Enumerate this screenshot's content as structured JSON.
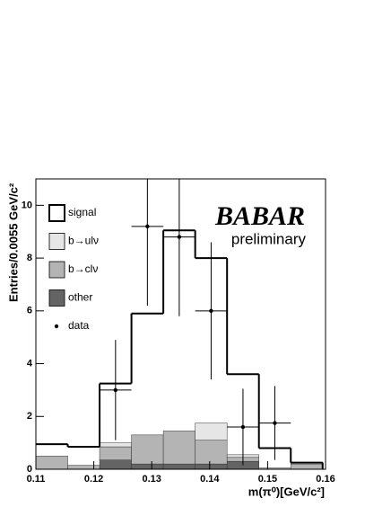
{
  "chart_data": {
    "type": "stacked-histogram",
    "logo": "BABAR",
    "annotation": "preliminary",
    "x_label": "m(π⁰)[GeV/c²]",
    "y_label": "Entries/0.0055 GeV/c²",
    "bins": [
      0.11,
      0.1155,
      0.121,
      0.1265,
      0.132,
      0.1375,
      0.143,
      0.1485,
      0.154,
      0.1595
    ],
    "series": [
      {
        "name": "signal",
        "color": "#000000",
        "fill": false,
        "values": [
          0.45,
          0.7,
          2.25,
          4.6,
          7.6,
          6.25,
          3.05,
          0.75,
          0
        ]
      },
      {
        "name": "b→ulν",
        "color": "#e6e6e6",
        "fill": true,
        "values": [
          0,
          0,
          0.15,
          0,
          0,
          0.65,
          0.1,
          0,
          0.05
        ]
      },
      {
        "name": "b→clν",
        "color": "#b4b4b4",
        "fill": true,
        "values": [
          0.5,
          0.15,
          0.5,
          1.1,
          1.25,
          0.9,
          0.15,
          0.05,
          0.2
        ]
      },
      {
        "name": "other",
        "color": "#646464",
        "fill": true,
        "values": [
          0,
          0,
          0.35,
          0.2,
          0.2,
          0.2,
          0.3,
          0,
          0
        ]
      }
    ],
    "points": {
      "name": "data",
      "color": "#000000",
      "x": [
        0.12375,
        0.12925,
        0.13475,
        0.14025,
        0.14575,
        0.15125
      ],
      "values": [
        3.0,
        9.2,
        8.8,
        6.0,
        1.6,
        1.75
      ],
      "errors": [
        1.9,
        3.0,
        3.0,
        2.6,
        1.45,
        1.4
      ],
      "xerr": 0.00275
    },
    "xlim": [
      0.11,
      0.16
    ],
    "ylim": [
      0,
      11
    ],
    "xticks": [
      0.11,
      0.12,
      0.13,
      0.14,
      0.15,
      0.16
    ],
    "yticks": [
      0,
      2,
      4,
      6,
      8,
      10
    ]
  }
}
